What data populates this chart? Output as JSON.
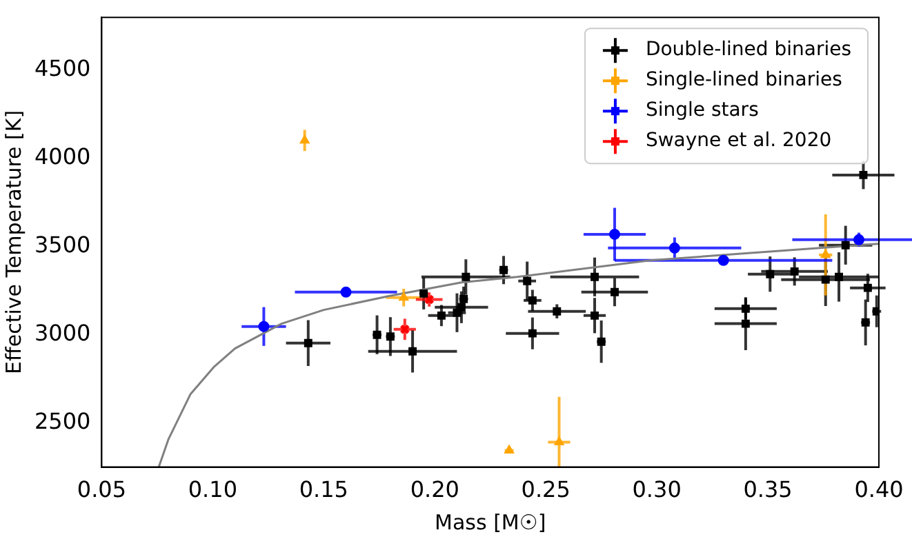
{
  "chart_data": {
    "type": "scatter",
    "xlabel": "Mass [M☉]",
    "ylabel": "Effective Temperature [K]",
    "xlim": [
      0.05,
      0.4
    ],
    "ylim": [
      2250,
      4800
    ],
    "xticks": [
      {
        "value": 0.05,
        "label": "0.05"
      },
      {
        "value": 0.1,
        "label": "0.10"
      },
      {
        "value": 0.15,
        "label": "0.15"
      },
      {
        "value": 0.2,
        "label": "0.20"
      },
      {
        "value": 0.25,
        "label": "0.25"
      },
      {
        "value": 0.3,
        "label": "0.30"
      },
      {
        "value": 0.35,
        "label": "0.35"
      },
      {
        "value": 0.4,
        "label": "0.40"
      }
    ],
    "yticks": [
      2500,
      3000,
      3500,
      4000,
      4500
    ],
    "grid": false,
    "legend": "top right",
    "series": [
      {
        "name": "Double-lined binaries",
        "color": "#000000",
        "marker": "square",
        "x": [
          0.143,
          0.174,
          0.18,
          0.19,
          0.195,
          0.203,
          0.21,
          0.212,
          0.213,
          0.214,
          0.231,
          0.2416,
          0.244,
          0.244,
          0.255,
          0.272,
          0.281,
          0.272,
          0.275,
          0.34,
          0.34,
          0.351,
          0.362,
          0.376,
          0.382,
          0.385,
          0.393,
          0.395,
          0.394,
          0.399
        ],
        "values": [
          2953,
          3000,
          2990,
          2906,
          3234,
          3109,
          3125,
          3156,
          3203,
          3328,
          3367,
          3305,
          3195,
          3008,
          3133,
          3328,
          3242,
          3109,
          2961,
          3148,
          3063,
          3344,
          3359,
          3313,
          3328,
          3508,
          3906,
          3266,
          3070,
          3133
        ],
        "xerrors": [
          0.01,
          0.002,
          0.002,
          0.02,
          0.002,
          0.006,
          0.004,
          0.012,
          0.002,
          0.02,
          0.002,
          0.004,
          0.004,
          0.012,
          0.013,
          0.02,
          0.015,
          0.005,
          0.002,
          0.014,
          0.014,
          0.01,
          0.015,
          0.02,
          0.018,
          0.012,
          0.014,
          0.008,
          0.002,
          0.002
        ],
        "errors": [
          130,
          110,
          110,
          120,
          90,
          60,
          110,
          90,
          70,
          100,
          80,
          110,
          60,
          90,
          40,
          110,
          80,
          100,
          120,
          60,
          150,
          100,
          80,
          150,
          140,
          110,
          80,
          80,
          130,
          90
        ]
      },
      {
        "name": "Single-lined binaries",
        "color": "#ffa500",
        "marker": "triangle",
        "x": [
          0.1414,
          0.186,
          0.2335,
          0.256,
          0.376
        ],
        "values": [
          4102,
          3211,
          2344,
          2391,
          3453
        ],
        "xerrors": [
          0.001,
          0.008,
          0.002,
          0.005,
          0.003
        ],
        "errors": [
          60,
          50,
          15,
          [
            2250,
            2648
          ],
          230
        ]
      },
      {
        "name": "Single stars",
        "color": "#0000ff",
        "marker": "circle",
        "x": [
          0.123,
          0.16,
          0.281,
          0.308,
          0.33,
          0.391
        ],
        "values": [
          3047,
          3242,
          3570,
          3492,
          3422,
          3539
        ],
        "xerrors": [
          0.01,
          0.023,
          0.014,
          0.03,
          0.049,
          0.03
        ],
        "errors": [
          110,
          20,
          150,
          60,
          20,
          40
        ]
      },
      {
        "name": "Swayne et al. 2020",
        "color": "#ff0000",
        "marker": "cross",
        "x": [
          0.1865,
          0.1975
        ],
        "values": [
          3031,
          3200
        ],
        "xerrors": [
          0.005,
          0.006
        ],
        "errors": [
          60,
          40
        ]
      },
      {
        "type": "line",
        "color": "#808080",
        "marker": "none",
        "x": [
          0.0757,
          0.08,
          0.09,
          0.1007,
          0.11,
          0.131,
          0.15,
          0.179,
          0.212,
          0.237,
          0.297,
          0.339,
          0.4
        ],
        "values": [
          2250,
          2406,
          2664,
          2820,
          2922,
          3063,
          3141,
          3219,
          3297,
          3328,
          3422,
          3461,
          3516
        ]
      }
    ]
  }
}
